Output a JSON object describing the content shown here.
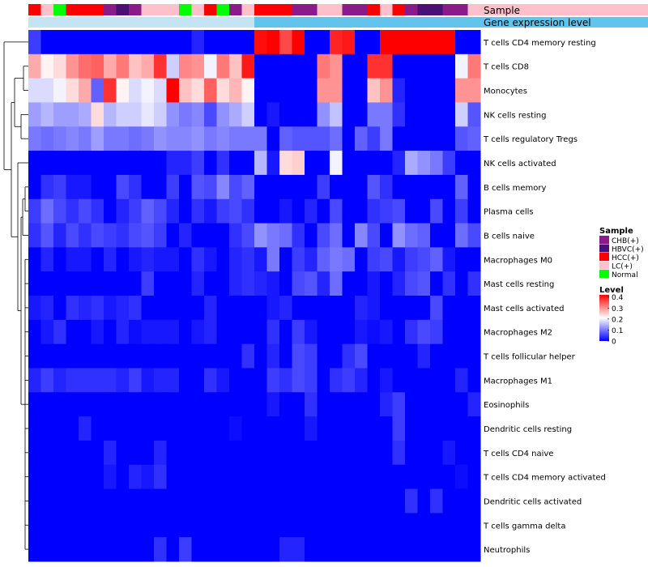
{
  "chart_data": {
    "type": "heatmap",
    "title": "",
    "annotation_track_labels": [
      "Sample",
      "Gene expression level"
    ],
    "legends": {
      "sample": {
        "title": "Sample",
        "entries": [
          {
            "label": "CHB(+)",
            "color": "#8B1A8B"
          },
          {
            "label": "HBVC(+)",
            "color": "#4B0F78"
          },
          {
            "label": "HCC(+)",
            "color": "#FF0000"
          },
          {
            "label": "LC(+)",
            "color": "#FFC0CB"
          },
          {
            "label": "Normal",
            "color": "#00FF00"
          }
        ]
      },
      "level": {
        "title": "Level",
        "ticks": [
          "0.4",
          "0.3",
          "0.2",
          "0.1",
          "0"
        ],
        "range": [
          0,
          0.42
        ],
        "colors": [
          "#0000FF",
          "#FFFFFF",
          "#FF0000"
        ]
      }
    },
    "sample_groups": [
      "HCC(+)",
      "LC(+)",
      "Normal",
      "HCC(+)",
      "HCC(+)",
      "HCC(+)",
      "CHB(+)",
      "HBVC(+)",
      "CHB(+)",
      "LC(+)",
      "LC(+)",
      "LC(+)",
      "Normal",
      "LC(+)",
      "HCC(+)",
      "Normal",
      "CHB(+)",
      "LC(+)",
      "HCC(+)",
      "HCC(+)",
      "HCC(+)",
      "CHB(+)",
      "CHB(+)",
      "LC(+)",
      "LC(+)",
      "CHB(+)",
      "CHB(+)",
      "HCC(+)",
      "LC(+)",
      "HCC(+)",
      "CHB(+)",
      "HBVC(+)",
      "HBVC(+)",
      "CHB(+)",
      "CHB(+)",
      "LC(+)"
    ],
    "gene_expression_level_colors": [
      "#c4e4f4",
      "#c4e4f4",
      "#c4e4f4",
      "#c4e4f4",
      "#c4e4f4",
      "#c4e4f4",
      "#c4e4f4",
      "#c4e4f4",
      "#c4e4f4",
      "#c4e4f4",
      "#c4e4f4",
      "#c4e4f4",
      "#c4e4f4",
      "#c4e4f4",
      "#c4e4f4",
      "#c4e4f4",
      "#c4e4f4",
      "#c4e4f4",
      "#62c3ec",
      "#62c3ec",
      "#62c3ec",
      "#62c3ec",
      "#62c3ec",
      "#62c3ec",
      "#62c3ec",
      "#62c3ec",
      "#62c3ec",
      "#62c3ec",
      "#62c3ec",
      "#62c3ec",
      "#62c3ec",
      "#62c3ec",
      "#62c3ec",
      "#62c3ec",
      "#62c3ec",
      "#62c3ec"
    ],
    "rows": [
      "T cells CD4 memory resting",
      "T cells CD8",
      "Monocytes",
      "NK cells resting",
      "T cells regulatory  Tregs",
      "NK cells activated",
      "B cells memory",
      "Plasma cells",
      "B cells naive",
      "Macrophages M0",
      "Mast cells resting",
      "Mast cells activated",
      "Macrophages M2",
      "T cells follicular helper",
      "Macrophages M1",
      "Eosinophils",
      "Dendritic cells resting",
      "T cells CD4 naive",
      "T cells CD4 memory activated",
      "Dendritic cells activated",
      "T cells gamma delta",
      "Neutrophils"
    ],
    "values": [
      [
        0.05,
        0,
        0,
        0,
        0,
        0,
        0,
        0,
        0,
        0,
        0,
        0,
        0,
        0.03,
        0,
        0,
        0,
        0,
        0.41,
        0.42,
        0.36,
        0.42,
        0,
        0,
        0.39,
        0.4,
        0,
        0,
        0.42,
        0.42,
        0.42,
        0.42,
        0.42,
        0.42,
        0,
        0
      ],
      [
        0.28,
        0.22,
        0.24,
        0.3,
        0.33,
        0.34,
        0.28,
        0.32,
        0.26,
        0.28,
        0.38,
        0.17,
        0.31,
        0.3,
        0.2,
        0.32,
        0.26,
        0.4,
        0,
        0,
        0,
        0,
        0,
        0.32,
        0.3,
        0,
        0,
        0.38,
        0.38,
        0,
        0,
        0,
        0,
        0,
        0.2,
        0.32
      ],
      [
        0.18,
        0.18,
        0.2,
        0.24,
        0.28,
        0.08,
        0.38,
        0.22,
        0.18,
        0.2,
        0.18,
        0.42,
        0.26,
        0.24,
        0.34,
        0.24,
        0.27,
        0.22,
        0,
        0,
        0,
        0,
        0,
        0.3,
        0.3,
        0,
        0,
        0.26,
        0.3,
        0.03,
        0,
        0,
        0,
        0,
        0.3,
        0.3
      ],
      [
        0.13,
        0.15,
        0.13,
        0.13,
        0.14,
        0.24,
        0.15,
        0.17,
        0.17,
        0.19,
        0.17,
        0.12,
        0.1,
        0.11,
        0.06,
        0.12,
        0.14,
        0.17,
        0,
        0.02,
        0,
        0,
        0,
        0.12,
        0.16,
        0,
        0,
        0.1,
        0.1,
        0.04,
        0,
        0,
        0,
        0,
        0.17,
        0.07
      ],
      [
        0.1,
        0.09,
        0.1,
        0.11,
        0.1,
        0.13,
        0.1,
        0.1,
        0.09,
        0.1,
        0.12,
        0.11,
        0.11,
        0.12,
        0.1,
        0.11,
        0.1,
        0.1,
        0.1,
        0,
        0.08,
        0.07,
        0.07,
        0.07,
        0.09,
        0,
        0.08,
        0.05,
        0.1,
        0,
        0,
        0,
        0,
        0,
        0.07,
        0.08
      ],
      [
        0,
        0,
        0,
        0,
        0,
        0,
        0,
        0,
        0,
        0,
        0,
        0.03,
        0.03,
        0.05,
        0,
        0.04,
        0,
        0,
        0.15,
        0.02,
        0.24,
        0.25,
        0,
        0,
        0.2,
        0,
        0,
        0,
        0,
        0.03,
        0.14,
        0.12,
        0.1,
        0.05,
        0,
        0
      ],
      [
        0,
        0.04,
        0.05,
        0.02,
        0.02,
        0,
        0,
        0.06,
        0.04,
        0,
        0,
        0.05,
        0,
        0.07,
        0.06,
        0.11,
        0.06,
        0.08,
        0,
        0,
        0,
        0,
        0,
        0.05,
        0,
        0,
        0,
        0.07,
        0.04,
        0,
        0,
        0,
        0,
        0,
        0.08,
        0
      ],
      [
        0.05,
        0.09,
        0.06,
        0.04,
        0.06,
        0.04,
        0,
        0.03,
        0.05,
        0.08,
        0.06,
        0.03,
        0,
        0.04,
        0.02,
        0.05,
        0.06,
        0.04,
        0,
        0,
        0.02,
        0,
        0.03,
        0,
        0.06,
        0,
        0,
        0.04,
        0.05,
        0.06,
        0,
        0,
        0.06,
        0,
        0.05,
        0
      ],
      [
        0.04,
        0.07,
        0.03,
        0.06,
        0.04,
        0.06,
        0.05,
        0.04,
        0.06,
        0.07,
        0.05,
        0,
        0.03,
        0,
        0,
        0,
        0.04,
        0.06,
        0.12,
        0.1,
        0.09,
        0.04,
        0,
        0.06,
        0.09,
        0,
        0.11,
        0.06,
        0,
        0.12,
        0.09,
        0.08,
        0,
        0,
        0.09,
        0.06
      ],
      [
        0,
        0.03,
        0,
        0.02,
        0.02,
        0,
        0.03,
        0,
        0.02,
        0.03,
        0.02,
        0.02,
        0,
        0.04,
        0.02,
        0,
        0.03,
        0.04,
        0.02,
        0.1,
        0,
        0.05,
        0.03,
        0.08,
        0.1,
        0.09,
        0,
        0.05,
        0.06,
        0.02,
        0.05,
        0.06,
        0.08,
        0.02,
        0,
        0
      ],
      [
        0,
        0,
        0,
        0,
        0,
        0,
        0,
        0,
        0,
        0.05,
        0,
        0,
        0,
        0.03,
        0,
        0,
        0.03,
        0.04,
        0.03,
        0.02,
        0,
        0.06,
        0.07,
        0.03,
        0.09,
        0,
        0,
        0.02,
        0,
        0.03,
        0.06,
        0.07,
        0,
        0.04,
        0,
        0.04
      ],
      [
        0.02,
        0.03,
        0,
        0.04,
        0.03,
        0.04,
        0.02,
        0.03,
        0.04,
        0,
        0,
        0,
        0,
        0,
        0.03,
        0,
        0,
        0,
        0,
        0.02,
        0.03,
        0,
        0,
        0,
        0,
        0,
        0.03,
        0.02,
        0,
        0,
        0,
        0,
        0.06,
        0,
        0,
        0
      ],
      [
        0,
        0.02,
        0.04,
        0,
        0,
        0.02,
        0,
        0.03,
        0.01,
        0.02,
        0.02,
        0.02,
        0,
        0.02,
        0.03,
        0,
        0,
        0,
        0,
        0.04,
        0,
        0.05,
        0.02,
        0,
        0,
        0,
        0.02,
        0.01,
        0.02,
        0,
        0.04,
        0.06,
        0.05,
        0,
        0,
        0
      ],
      [
        0,
        0,
        0,
        0,
        0,
        0,
        0,
        0,
        0,
        0,
        0,
        0,
        0,
        0,
        0,
        0,
        0,
        0.04,
        0,
        0.03,
        0,
        0.06,
        0.05,
        0,
        0,
        0.04,
        0.06,
        0,
        0,
        0,
        0,
        0.03,
        0,
        0,
        0,
        0
      ],
      [
        0.03,
        0.05,
        0.03,
        0.04,
        0.04,
        0.04,
        0.04,
        0.03,
        0.05,
        0.02,
        0.03,
        0.03,
        0,
        0,
        0.04,
        0.02,
        0,
        0,
        0,
        0.05,
        0.04,
        0.06,
        0.05,
        0,
        0.04,
        0.05,
        0.03,
        0,
        0.02,
        0,
        0,
        0,
        0,
        0,
        0.03,
        0
      ],
      [
        0,
        0,
        0,
        0,
        0,
        0,
        0,
        0,
        0,
        0,
        0,
        0,
        0,
        0,
        0,
        0,
        0,
        0,
        0,
        0.02,
        0,
        0,
        0.04,
        0,
        0,
        0,
        0,
        0,
        0.03,
        0.05,
        0,
        0,
        0,
        0,
        0,
        0.03
      ],
      [
        0,
        0,
        0,
        0,
        0.03,
        0,
        0,
        0,
        0,
        0,
        0,
        0,
        0,
        0,
        0,
        0,
        0.01,
        0,
        0,
        0,
        0,
        0,
        0.02,
        0,
        0,
        0,
        0,
        0,
        0,
        0.05,
        0,
        0,
        0,
        0,
        0,
        0
      ],
      [
        0,
        0,
        0,
        0,
        0,
        0,
        0.03,
        0,
        0,
        0,
        0.03,
        0,
        0,
        0,
        0,
        0,
        0,
        0,
        0,
        0,
        0,
        0,
        0,
        0,
        0,
        0,
        0,
        0,
        0,
        0.04,
        0,
        0,
        0,
        0.02,
        0,
        0
      ],
      [
        0,
        0,
        0,
        0,
        0,
        0,
        0.02,
        0,
        0.03,
        0.02,
        0.04,
        0,
        0,
        0,
        0,
        0,
        0,
        0,
        0,
        0,
        0,
        0,
        0,
        0,
        0,
        0,
        0,
        0,
        0,
        0,
        0,
        0,
        0,
        0,
        0.01,
        0
      ],
      [
        0,
        0,
        0,
        0,
        0,
        0,
        0,
        0,
        0,
        0,
        0,
        0,
        0,
        0,
        0,
        0,
        0,
        0,
        0,
        0,
        0,
        0,
        0,
        0,
        0,
        0,
        0,
        0,
        0,
        0,
        0.04,
        0,
        0.04,
        0,
        0,
        0
      ],
      [
        0,
        0,
        0,
        0,
        0,
        0,
        0,
        0,
        0,
        0,
        0,
        0,
        0,
        0,
        0,
        0,
        0,
        0,
        0,
        0,
        0,
        0,
        0,
        0,
        0,
        0,
        0,
        0,
        0,
        0,
        0,
        0,
        0,
        0,
        0,
        0
      ],
      [
        0,
        0,
        0,
        0,
        0,
        0,
        0,
        0,
        0,
        0,
        0.04,
        0,
        0.05,
        0,
        0,
        0,
        0,
        0,
        0,
        0,
        0.03,
        0.03,
        0,
        0,
        0,
        0,
        0,
        0,
        0,
        0,
        0,
        0,
        0,
        0,
        0,
        0
      ]
    ]
  }
}
